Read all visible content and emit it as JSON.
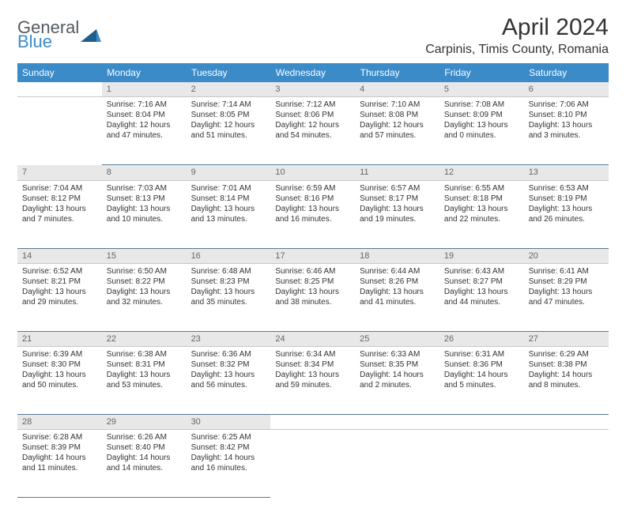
{
  "brand": {
    "line1": "General",
    "line2": "Blue",
    "accent_color": "#3b8bc9",
    "text_color": "#555a5f"
  },
  "title": "April 2024",
  "location": "Carpinis, Timis County, Romania",
  "day_headers": [
    "Sunday",
    "Monday",
    "Tuesday",
    "Wednesday",
    "Thursday",
    "Friday",
    "Saturday"
  ],
  "header_bg": "#3b8bc9",
  "header_fg": "#ffffff",
  "daynum_bg": "#e8e8e8",
  "rule_color": "#5a7a95",
  "weeks": [
    {
      "nums": [
        "",
        "1",
        "2",
        "3",
        "4",
        "5",
        "6"
      ],
      "cells": [
        {
          "empty": true
        },
        {
          "sunrise": "Sunrise: 7:16 AM",
          "sunset": "Sunset: 8:04 PM",
          "daylight": "Daylight: 12 hours and 47 minutes."
        },
        {
          "sunrise": "Sunrise: 7:14 AM",
          "sunset": "Sunset: 8:05 PM",
          "daylight": "Daylight: 12 hours and 51 minutes."
        },
        {
          "sunrise": "Sunrise: 7:12 AM",
          "sunset": "Sunset: 8:06 PM",
          "daylight": "Daylight: 12 hours and 54 minutes."
        },
        {
          "sunrise": "Sunrise: 7:10 AM",
          "sunset": "Sunset: 8:08 PM",
          "daylight": "Daylight: 12 hours and 57 minutes."
        },
        {
          "sunrise": "Sunrise: 7:08 AM",
          "sunset": "Sunset: 8:09 PM",
          "daylight": "Daylight: 13 hours and 0 minutes."
        },
        {
          "sunrise": "Sunrise: 7:06 AM",
          "sunset": "Sunset: 8:10 PM",
          "daylight": "Daylight: 13 hours and 3 minutes."
        }
      ]
    },
    {
      "nums": [
        "7",
        "8",
        "9",
        "10",
        "11",
        "12",
        "13"
      ],
      "cells": [
        {
          "sunrise": "Sunrise: 7:04 AM",
          "sunset": "Sunset: 8:12 PM",
          "daylight": "Daylight: 13 hours and 7 minutes."
        },
        {
          "sunrise": "Sunrise: 7:03 AM",
          "sunset": "Sunset: 8:13 PM",
          "daylight": "Daylight: 13 hours and 10 minutes."
        },
        {
          "sunrise": "Sunrise: 7:01 AM",
          "sunset": "Sunset: 8:14 PM",
          "daylight": "Daylight: 13 hours and 13 minutes."
        },
        {
          "sunrise": "Sunrise: 6:59 AM",
          "sunset": "Sunset: 8:16 PM",
          "daylight": "Daylight: 13 hours and 16 minutes."
        },
        {
          "sunrise": "Sunrise: 6:57 AM",
          "sunset": "Sunset: 8:17 PM",
          "daylight": "Daylight: 13 hours and 19 minutes."
        },
        {
          "sunrise": "Sunrise: 6:55 AM",
          "sunset": "Sunset: 8:18 PM",
          "daylight": "Daylight: 13 hours and 22 minutes."
        },
        {
          "sunrise": "Sunrise: 6:53 AM",
          "sunset": "Sunset: 8:19 PM",
          "daylight": "Daylight: 13 hours and 26 minutes."
        }
      ]
    },
    {
      "nums": [
        "14",
        "15",
        "16",
        "17",
        "18",
        "19",
        "20"
      ],
      "cells": [
        {
          "sunrise": "Sunrise: 6:52 AM",
          "sunset": "Sunset: 8:21 PM",
          "daylight": "Daylight: 13 hours and 29 minutes."
        },
        {
          "sunrise": "Sunrise: 6:50 AM",
          "sunset": "Sunset: 8:22 PM",
          "daylight": "Daylight: 13 hours and 32 minutes."
        },
        {
          "sunrise": "Sunrise: 6:48 AM",
          "sunset": "Sunset: 8:23 PM",
          "daylight": "Daylight: 13 hours and 35 minutes."
        },
        {
          "sunrise": "Sunrise: 6:46 AM",
          "sunset": "Sunset: 8:25 PM",
          "daylight": "Daylight: 13 hours and 38 minutes."
        },
        {
          "sunrise": "Sunrise: 6:44 AM",
          "sunset": "Sunset: 8:26 PM",
          "daylight": "Daylight: 13 hours and 41 minutes."
        },
        {
          "sunrise": "Sunrise: 6:43 AM",
          "sunset": "Sunset: 8:27 PM",
          "daylight": "Daylight: 13 hours and 44 minutes."
        },
        {
          "sunrise": "Sunrise: 6:41 AM",
          "sunset": "Sunset: 8:29 PM",
          "daylight": "Daylight: 13 hours and 47 minutes."
        }
      ]
    },
    {
      "nums": [
        "21",
        "22",
        "23",
        "24",
        "25",
        "26",
        "27"
      ],
      "cells": [
        {
          "sunrise": "Sunrise: 6:39 AM",
          "sunset": "Sunset: 8:30 PM",
          "daylight": "Daylight: 13 hours and 50 minutes."
        },
        {
          "sunrise": "Sunrise: 6:38 AM",
          "sunset": "Sunset: 8:31 PM",
          "daylight": "Daylight: 13 hours and 53 minutes."
        },
        {
          "sunrise": "Sunrise: 6:36 AM",
          "sunset": "Sunset: 8:32 PM",
          "daylight": "Daylight: 13 hours and 56 minutes."
        },
        {
          "sunrise": "Sunrise: 6:34 AM",
          "sunset": "Sunset: 8:34 PM",
          "daylight": "Daylight: 13 hours and 59 minutes."
        },
        {
          "sunrise": "Sunrise: 6:33 AM",
          "sunset": "Sunset: 8:35 PM",
          "daylight": "Daylight: 14 hours and 2 minutes."
        },
        {
          "sunrise": "Sunrise: 6:31 AM",
          "sunset": "Sunset: 8:36 PM",
          "daylight": "Daylight: 14 hours and 5 minutes."
        },
        {
          "sunrise": "Sunrise: 6:29 AM",
          "sunset": "Sunset: 8:38 PM",
          "daylight": "Daylight: 14 hours and 8 minutes."
        }
      ]
    },
    {
      "nums": [
        "28",
        "29",
        "30",
        "",
        "",
        "",
        ""
      ],
      "cells": [
        {
          "sunrise": "Sunrise: 6:28 AM",
          "sunset": "Sunset: 8:39 PM",
          "daylight": "Daylight: 14 hours and 11 minutes."
        },
        {
          "sunrise": "Sunrise: 6:26 AM",
          "sunset": "Sunset: 8:40 PM",
          "daylight": "Daylight: 14 hours and 14 minutes."
        },
        {
          "sunrise": "Sunrise: 6:25 AM",
          "sunset": "Sunset: 8:42 PM",
          "daylight": "Daylight: 14 hours and 16 minutes."
        },
        {
          "empty": true
        },
        {
          "empty": true
        },
        {
          "empty": true
        },
        {
          "empty": true
        }
      ]
    }
  ]
}
